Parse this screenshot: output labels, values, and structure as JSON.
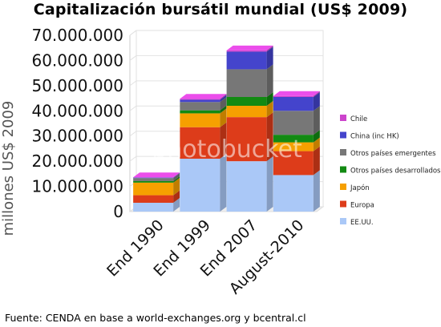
{
  "chart_data": {
    "type": "bar",
    "stacked": true,
    "title": "Capitalización bursátil mundial (US$ 2009)",
    "ylabel": "millones US$ 2009",
    "xlabel": "",
    "categories": [
      "End 1990",
      "End 1999",
      "End 2007",
      "August-2010"
    ],
    "ylim": [
      0,
      70000000
    ],
    "yticks": [
      0,
      10000000,
      20000000,
      30000000,
      40000000,
      50000000,
      60000000,
      70000000
    ],
    "ytick_labels": [
      "0",
      "10.000.000",
      "20.000.000",
      "30.000.000",
      "40.000.000",
      "50.000.000",
      "60.000.000",
      "70.000.000"
    ],
    "legend_position": "right",
    "series": [
      {
        "name": "EE.UU.",
        "color": "#aac8f7",
        "values": [
          3500000,
          21000000,
          20000000,
          14500000
        ]
      },
      {
        "name": "Europa",
        "color": "#dd3c1a",
        "values": [
          3000000,
          12500000,
          17500000,
          9500000
        ]
      },
      {
        "name": "Japón",
        "color": "#f6a000",
        "values": [
          5000000,
          5500000,
          4500000,
          3500000
        ]
      },
      {
        "name": "Otros países desarrollados",
        "color": "#128a12",
        "values": [
          600000,
          1200000,
          3500000,
          3000000
        ]
      },
      {
        "name": "Otros países emergentes",
        "color": "#777777",
        "values": [
          1200000,
          3300000,
          11000000,
          9500000
        ]
      },
      {
        "name": "China (inc HK)",
        "color": "#4444cc",
        "values": [
          200000,
          900000,
          7000000,
          5500000
        ]
      },
      {
        "name": "Chile",
        "color": "#cc44cc",
        "values": [
          100000,
          400000,
          500000,
          400000
        ]
      }
    ],
    "source_note": "Fuente: CENDA en base a world-exchanges.org y bcentral.cl",
    "watermark": "photobucket"
  }
}
